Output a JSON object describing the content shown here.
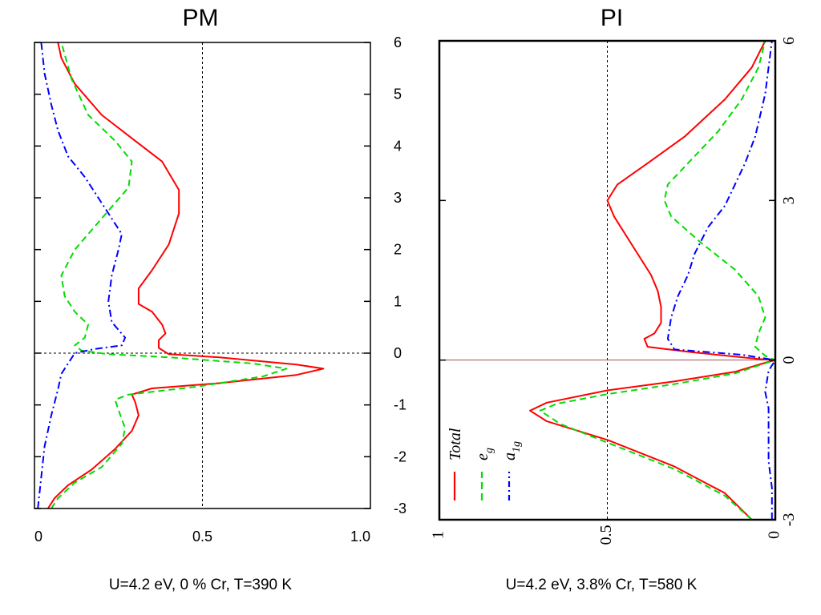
{
  "figure": {
    "caption_left": "U=4.2 eV,   0 % Cr,  T=390 K",
    "caption_right": "U=4.2 eV,   3.8% Cr,  T=580 K"
  },
  "chart_data": [
    {
      "type": "line",
      "title": "PM",
      "xlabel": "",
      "ylabel": "",
      "xlim": [
        0,
        1.0
      ],
      "ylim": [
        -3,
        6
      ],
      "x_ticks": [
        0,
        0.5,
        1.0
      ],
      "x_tick_labels": [
        "0",
        "0.5",
        "1.0"
      ],
      "y_ticks": [
        -3,
        -2,
        -1,
        0,
        1,
        2,
        3,
        4,
        5,
        6
      ],
      "y_tick_labels": [
        "-3",
        "-2",
        "-1",
        "0",
        "1",
        "2",
        "3",
        "4",
        "5",
        "6"
      ],
      "y_axis_side": "right",
      "grid": false,
      "reference_lines": [
        {
          "orientation": "vertical",
          "x": 0.5,
          "style": "dashed",
          "color": "#000000"
        },
        {
          "orientation": "horizontal",
          "y": 0,
          "style": "dashed",
          "color": "#000000"
        }
      ],
      "series": [
        {
          "color": "#ff0000",
          "style": "solid",
          "points": [
            [
              0.04,
              -3.0
            ],
            [
              0.06,
              -2.8
            ],
            [
              0.1,
              -2.55
            ],
            [
              0.17,
              -2.25
            ],
            [
              0.24,
              -1.85
            ],
            [
              0.29,
              -1.5
            ],
            [
              0.31,
              -1.2
            ],
            [
              0.3,
              -0.95
            ],
            [
              0.29,
              -0.8
            ],
            [
              0.35,
              -0.68
            ],
            [
              0.55,
              -0.58
            ],
            [
              0.78,
              -0.42
            ],
            [
              0.86,
              -0.3
            ],
            [
              0.78,
              -0.22
            ],
            [
              0.55,
              -0.08
            ],
            [
              0.4,
              -0.02
            ],
            [
              0.37,
              0.1
            ],
            [
              0.37,
              0.25
            ],
            [
              0.39,
              0.38
            ],
            [
              0.38,
              0.55
            ],
            [
              0.35,
              0.8
            ],
            [
              0.31,
              0.95
            ],
            [
              0.31,
              1.25
            ],
            [
              0.35,
              1.6
            ],
            [
              0.4,
              2.1
            ],
            [
              0.43,
              2.7
            ],
            [
              0.43,
              3.15
            ],
            [
              0.38,
              3.7
            ],
            [
              0.3,
              4.1
            ],
            [
              0.2,
              4.6
            ],
            [
              0.12,
              5.2
            ],
            [
              0.08,
              5.7
            ],
            [
              0.07,
              6.0
            ]
          ]
        },
        {
          "color": "#00dd00",
          "style": "dashed",
          "points": [
            [
              0.05,
              -3.0
            ],
            [
              0.07,
              -2.8
            ],
            [
              0.12,
              -2.5
            ],
            [
              0.2,
              -2.2
            ],
            [
              0.26,
              -1.75
            ],
            [
              0.27,
              -1.45
            ],
            [
              0.25,
              -1.1
            ],
            [
              0.24,
              -0.9
            ],
            [
              0.28,
              -0.8
            ],
            [
              0.48,
              -0.65
            ],
            [
              0.68,
              -0.45
            ],
            [
              0.75,
              -0.3
            ],
            [
              0.65,
              -0.2
            ],
            [
              0.4,
              -0.08
            ],
            [
              0.22,
              -0.02
            ],
            [
              0.14,
              0.05
            ],
            [
              0.12,
              0.15
            ],
            [
              0.15,
              0.3
            ],
            [
              0.16,
              0.55
            ],
            [
              0.12,
              0.8
            ],
            [
              0.09,
              1.1
            ],
            [
              0.08,
              1.5
            ],
            [
              0.12,
              2.0
            ],
            [
              0.2,
              2.6
            ],
            [
              0.28,
              3.2
            ],
            [
              0.29,
              3.7
            ],
            [
              0.24,
              4.1
            ],
            [
              0.16,
              4.6
            ],
            [
              0.11,
              5.3
            ],
            [
              0.08,
              6.0
            ]
          ]
        },
        {
          "color": "#0000ff",
          "style": "dashdot",
          "points": [
            [
              0.01,
              -3.0
            ],
            [
              0.02,
              -2.4
            ],
            [
              0.03,
              -1.8
            ],
            [
              0.05,
              -1.2
            ],
            [
              0.07,
              -0.7
            ],
            [
              0.08,
              -0.4
            ],
            [
              0.1,
              -0.2
            ],
            [
              0.12,
              0.0
            ],
            [
              0.18,
              0.08
            ],
            [
              0.26,
              0.15
            ],
            [
              0.27,
              0.3
            ],
            [
              0.23,
              0.6
            ],
            [
              0.22,
              1.0
            ],
            [
              0.23,
              1.5
            ],
            [
              0.25,
              2.0
            ],
            [
              0.26,
              2.3
            ],
            [
              0.22,
              2.7
            ],
            [
              0.18,
              3.1
            ],
            [
              0.15,
              3.4
            ],
            [
              0.1,
              3.8
            ],
            [
              0.07,
              4.3
            ],
            [
              0.05,
              4.8
            ],
            [
              0.03,
              5.4
            ],
            [
              0.02,
              6.0
            ]
          ]
        }
      ]
    },
    {
      "type": "line",
      "title": "PI",
      "xlabel": "",
      "ylabel": "",
      "xlim": [
        1,
        0
      ],
      "ylim": [
        -3,
        6
      ],
      "x_ticks": [
        1,
        0.5,
        0
      ],
      "x_tick_labels": [
        "1",
        "0.5",
        "0"
      ],
      "y_ticks": [
        -3,
        0,
        3,
        6
      ],
      "y_tick_labels": [
        "-3",
        "0",
        "3",
        "6"
      ],
      "y_axis_side": "right",
      "grid": false,
      "reference_lines": [
        {
          "orientation": "vertical",
          "x": 0.5,
          "style": "dashed",
          "color": "#000000"
        },
        {
          "orientation": "horizontal",
          "y": 0,
          "style": "solid",
          "color": "#a05050"
        }
      ],
      "legend": {
        "placement": "bottom-left",
        "entries": [
          {
            "label": "Total",
            "sub": "",
            "color": "#ff0000",
            "style": "solid"
          },
          {
            "label": "e",
            "sub": "g",
            "color": "#00dd00",
            "style": "dashed"
          },
          {
            "label": "a",
            "sub": "1g",
            "color": "#0000ff",
            "style": "dashdot"
          }
        ]
      },
      "series": [
        {
          "name": "Total",
          "color": "#ff0000",
          "style": "solid",
          "points": [
            [
              0.07,
              -3.0
            ],
            [
              0.15,
              -2.5
            ],
            [
              0.3,
              -2.0
            ],
            [
              0.5,
              -1.5
            ],
            [
              0.68,
              -1.15
            ],
            [
              0.73,
              -0.95
            ],
            [
              0.68,
              -0.8
            ],
            [
              0.5,
              -0.57
            ],
            [
              0.3,
              -0.4
            ],
            [
              0.12,
              -0.22
            ],
            [
              0.03,
              -0.05
            ],
            [
              0.0,
              0.0
            ],
            [
              0.05,
              0.02
            ],
            [
              0.25,
              0.15
            ],
            [
              0.38,
              0.25
            ],
            [
              0.39,
              0.4
            ],
            [
              0.36,
              0.5
            ],
            [
              0.34,
              0.7
            ],
            [
              0.34,
              1.0
            ],
            [
              0.35,
              1.3
            ],
            [
              0.37,
              1.6
            ],
            [
              0.43,
              2.2
            ],
            [
              0.48,
              2.7
            ],
            [
              0.5,
              3.0
            ],
            [
              0.47,
              3.3
            ],
            [
              0.38,
              3.7
            ],
            [
              0.27,
              4.2
            ],
            [
              0.15,
              4.9
            ],
            [
              0.07,
              5.5
            ],
            [
              0.03,
              6.0
            ]
          ]
        },
        {
          "name": "e_g",
          "color": "#00dd00",
          "style": "dashed",
          "points": [
            [
              0.07,
              -3.0
            ],
            [
              0.15,
              -2.55
            ],
            [
              0.3,
              -2.05
            ],
            [
              0.5,
              -1.55
            ],
            [
              0.64,
              -1.2
            ],
            [
              0.7,
              -0.95
            ],
            [
              0.65,
              -0.82
            ],
            [
              0.5,
              -0.64
            ],
            [
              0.3,
              -0.45
            ],
            [
              0.12,
              -0.25
            ],
            [
              0.03,
              -0.06
            ],
            [
              0.0,
              0.0
            ],
            [
              0.03,
              0.08
            ],
            [
              0.06,
              0.25
            ],
            [
              0.05,
              0.5
            ],
            [
              0.03,
              0.8
            ],
            [
              0.05,
              1.2
            ],
            [
              0.12,
              1.7
            ],
            [
              0.22,
              2.2
            ],
            [
              0.31,
              2.7
            ],
            [
              0.33,
              3.0
            ],
            [
              0.32,
              3.3
            ],
            [
              0.26,
              3.7
            ],
            [
              0.17,
              4.3
            ],
            [
              0.1,
              4.9
            ],
            [
              0.05,
              5.5
            ],
            [
              0.03,
              6.0
            ]
          ]
        },
        {
          "name": "a_1g",
          "color": "#0000ff",
          "style": "dashdot",
          "points": [
            [
              0.01,
              -3.0
            ],
            [
              0.01,
              -2.4
            ],
            [
              0.02,
              -1.9
            ],
            [
              0.02,
              -1.4
            ],
            [
              0.02,
              -0.9
            ],
            [
              0.03,
              -0.6
            ],
            [
              0.02,
              -0.2
            ],
            [
              0.0,
              0.0
            ],
            [
              0.1,
              0.1
            ],
            [
              0.3,
              0.2
            ],
            [
              0.32,
              0.4
            ],
            [
              0.31,
              0.8
            ],
            [
              0.29,
              1.2
            ],
            [
              0.26,
              1.6
            ],
            [
              0.24,
              2.0
            ],
            [
              0.2,
              2.5
            ],
            [
              0.15,
              2.9
            ],
            [
              0.12,
              3.3
            ],
            [
              0.09,
              3.7
            ],
            [
              0.06,
              4.2
            ],
            [
              0.03,
              5.0
            ],
            [
              0.01,
              6.0
            ]
          ]
        }
      ]
    }
  ]
}
